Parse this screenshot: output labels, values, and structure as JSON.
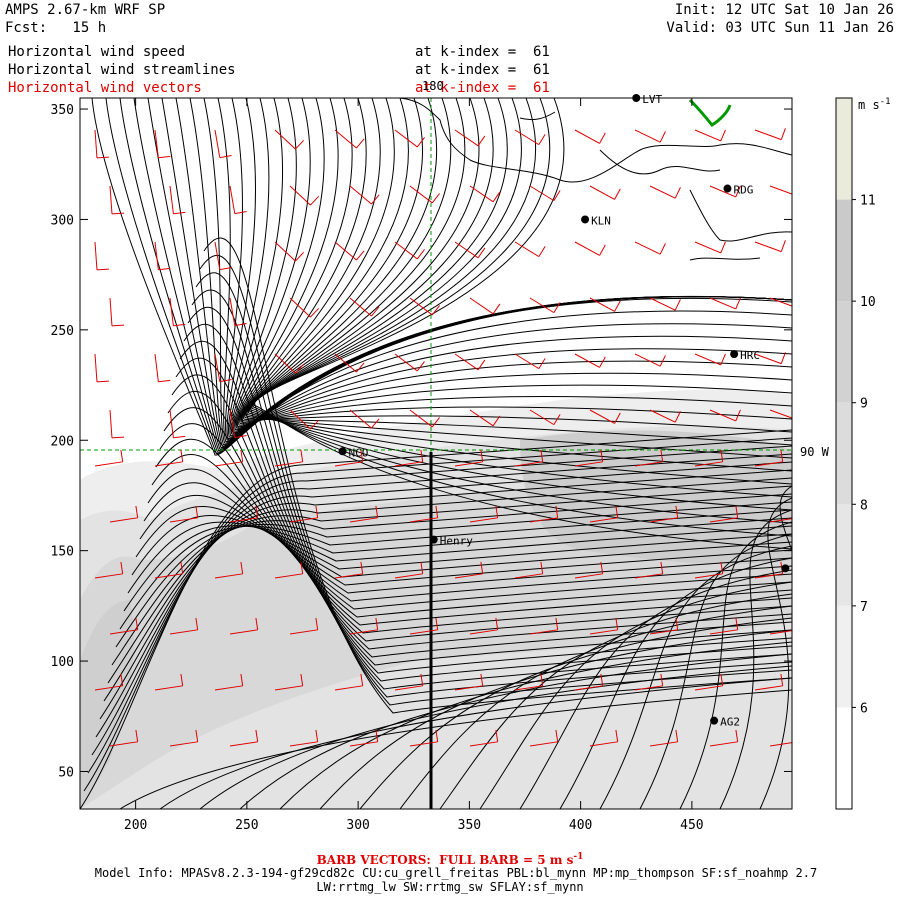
{
  "header": {
    "model_title": "AMPS 2.67-km WRF SP",
    "forecast": "Fcst:   15 h",
    "init": "Init: 12 UTC Sat 10 Jan 26",
    "valid": "Valid: 03 UTC Sun 11 Jan 26"
  },
  "fields": [
    {
      "name": "Horizontal wind speed",
      "level": "at k-index =  61",
      "color": "#000000"
    },
    {
      "name": "Horizontal wind streamlines",
      "level": "at k-index =  61",
      "color": "#000000"
    },
    {
      "name": "Horizontal wind vectors",
      "level": "at k-index =  61",
      "color": "#e00000"
    }
  ],
  "axes": {
    "x_ticks": [
      "200",
      "250",
      "300",
      "350",
      "400",
      "450"
    ],
    "y_ticks": [
      "350",
      "300",
      "250",
      "200",
      "150",
      "100",
      "50"
    ],
    "x_range": [
      175,
      495
    ],
    "y_range": [
      33,
      355
    ],
    "meridian_label": "180",
    "parallel_label": "90 W"
  },
  "colorbar": {
    "unit_label": "m s",
    "unit_exp": "-1",
    "ticks": [
      "11",
      "10",
      "9",
      "8",
      "7",
      "6"
    ],
    "levels": [
      5,
      6,
      7,
      8,
      9,
      10,
      11,
      12
    ],
    "colors": [
      "#ffffff",
      "#f0f0f0",
      "#e6e6e6",
      "#dcdcdc",
      "#d2d2d2",
      "#cacaca",
      "#ebebdc"
    ]
  },
  "stations": [
    {
      "code": "LVT",
      "x": 425,
      "y": 355
    },
    {
      "code": "RDG",
      "x": 466,
      "y": 314
    },
    {
      "code": "KLN",
      "x": 402,
      "y": 300
    },
    {
      "code": "HRC",
      "x": 469,
      "y": 239
    },
    {
      "code": "NCO",
      "x": 293,
      "y": 195
    },
    {
      "code": "Henry",
      "x": 334,
      "y": 155
    },
    {
      "code": "",
      "x": 492,
      "y": 142
    },
    {
      "code": "AG2",
      "x": 460,
      "y": 73
    }
  ],
  "footer": {
    "barb_label": "BARB VECTORS:  FULL BARB = 5 m s",
    "barb_exp": "-1",
    "model_info": "Model Info: MPASv8.2.3-194-gf29cd82c CU:cu_grell_freitas PBL:bl_mynn MP:mp_thompson SF:sf_noahmp 2.7",
    "physics": "LW:rrtmg_lw SW:rrtmg_sw SFLAY:sf_mynn"
  },
  "colors": {
    "barbs": "#e00000",
    "coast": "#009900",
    "grid": "#009900"
  }
}
